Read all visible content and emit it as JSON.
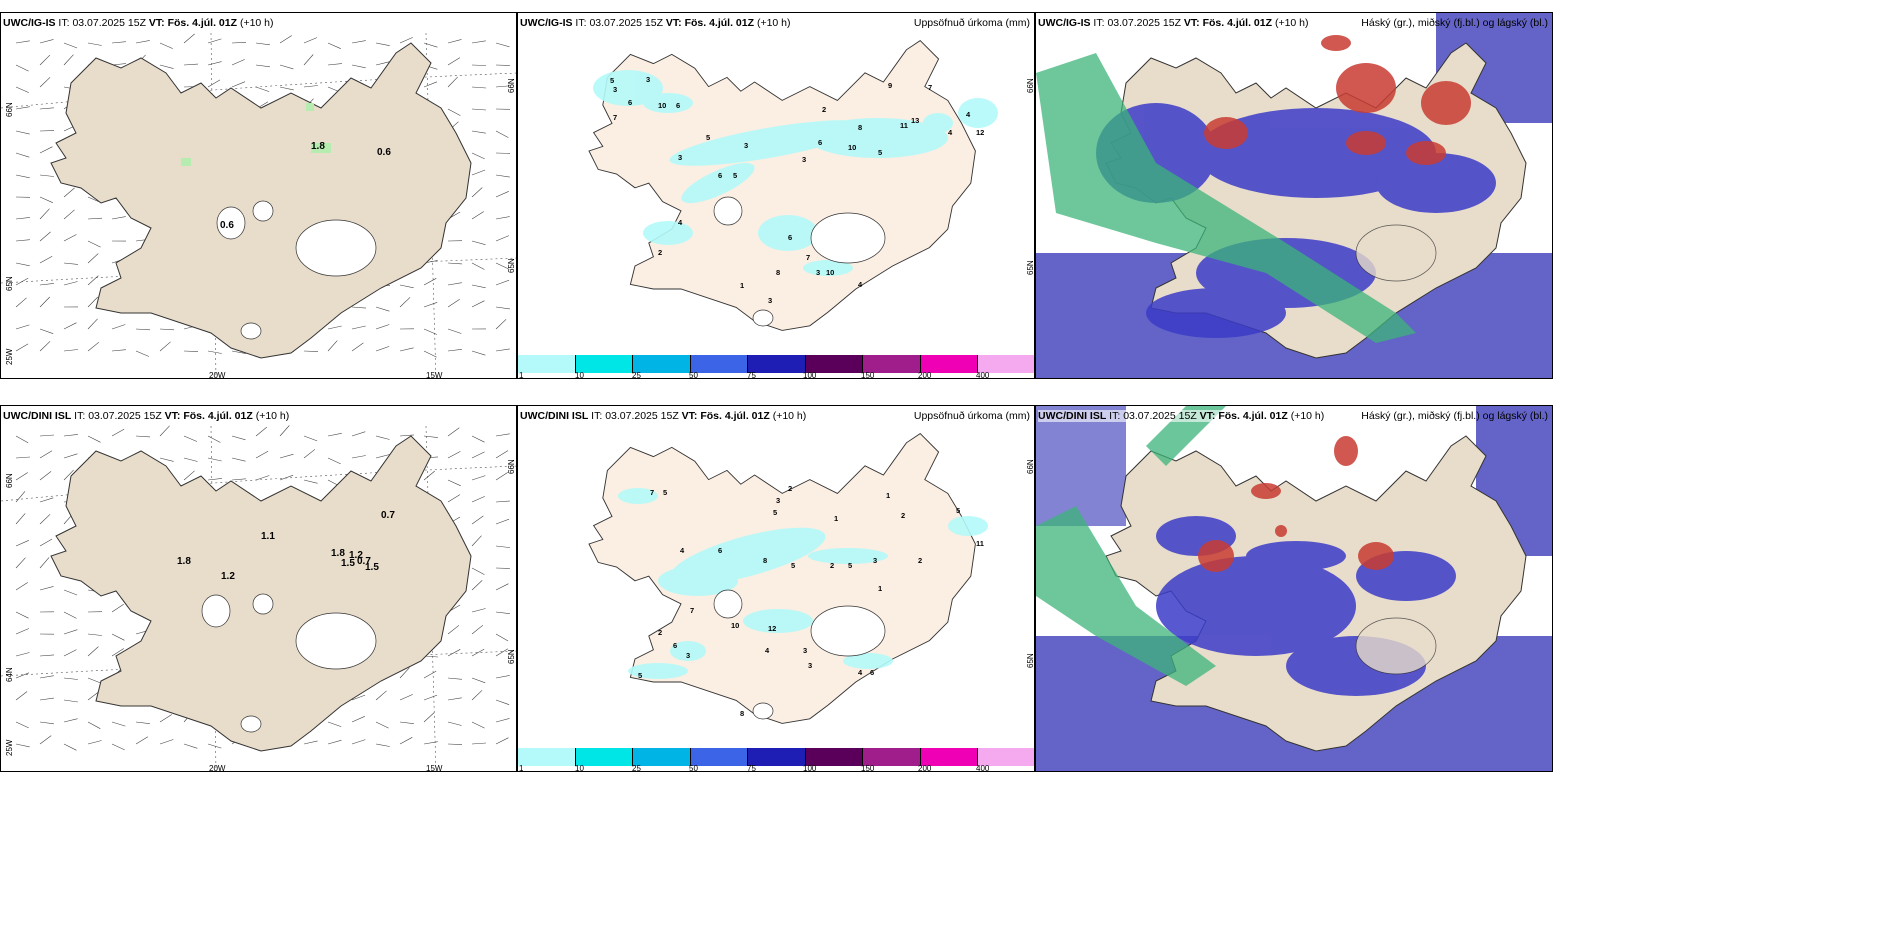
{
  "rows": [
    {
      "model": "UWC/IG-IS",
      "it_label": "IT:",
      "it_value": "03.07.2025 15Z",
      "vt_label": "VT:",
      "vt_value": "Fös. 4.júl. 01Z",
      "lead": "(+10 h)",
      "wind_values": [
        "1.8",
        "0.6",
        "0.6"
      ],
      "precip_values": [
        "5",
        "3",
        "3",
        "6",
        "10",
        "6",
        "7",
        "2",
        "9",
        "7",
        "4",
        "12",
        "5",
        "3",
        "6",
        "3",
        "8",
        "10",
        "5",
        "11",
        "13",
        "4",
        "3",
        "6",
        "5",
        "2",
        "4",
        "6",
        "8",
        "7",
        "3",
        "10",
        "4",
        "1",
        "3"
      ]
    },
    {
      "model": "UWC/DINI ISL",
      "it_label": "IT:",
      "it_value": "03.07.2025 15Z",
      "vt_label": "VT:",
      "vt_value": "Fös. 4.júl. 01Z",
      "lead": "(+10 h)",
      "wind_values": [
        "1.8",
        "1.1",
        "1.2",
        "1.8",
        "1.2",
        "1.5",
        "0.7",
        "1.5",
        "0.7"
      ],
      "precip_values": [
        "7",
        "5",
        "3",
        "2",
        "5",
        "1",
        "4",
        "6",
        "8",
        "5",
        "7",
        "10",
        "12",
        "2",
        "6",
        "3",
        "5",
        "1",
        "2",
        "5",
        "3",
        "4",
        "3",
        "2",
        "5",
        "11",
        "2",
        "3",
        "4",
        "6",
        "1",
        "8"
      ]
    }
  ],
  "precip_title": "Uppsöfnuð úrkoma (mm)",
  "cloud_title": "Háský (gr.), miðský (fj.bl.) og lágský (bl.)",
  "axis_labels": {
    "lat66": "66N",
    "lat65": "65N",
    "lat64": "64N",
    "lon25": "25W",
    "lon20": "20W",
    "lon15": "15W"
  },
  "colorbar": {
    "ticks": [
      "1",
      "10",
      "25",
      "50",
      "75",
      "100",
      "150",
      "200",
      "400"
    ],
    "colors": [
      "#b4fafa",
      "#00e6e6",
      "#00b4e6",
      "#3c64e6",
      "#1e1eb4",
      "#5a005a",
      "#a01e8c",
      "#f000b4",
      "#f5aaf0"
    ]
  },
  "colors": {
    "land": "#e8dccb",
    "land_precip": "#fbeee2",
    "glacier": "#ffffff",
    "precip_light": "#b4fafa",
    "cloud_high": "#c83c32",
    "cloud_mid": "#3c3cc8",
    "cloud_low": "#3cb47a",
    "cloud_bg": "#6464c8"
  }
}
